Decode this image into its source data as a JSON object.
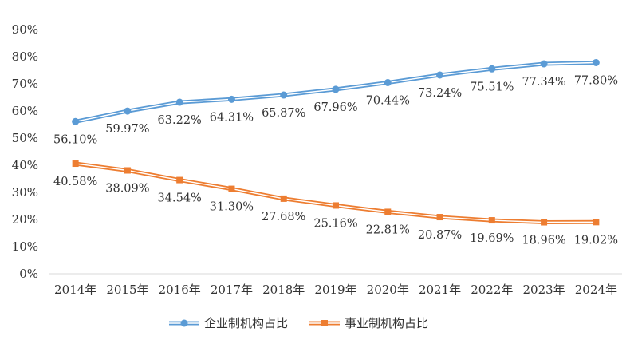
{
  "chart_data": {
    "type": "line",
    "categories": [
      "2014年",
      "2015年",
      "2016年",
      "2017年",
      "2018年",
      "2019年",
      "2020年",
      "2021年",
      "2022年",
      "2023年",
      "2024年"
    ],
    "ylim": [
      0,
      90
    ],
    "yticks": [
      "0%",
      "10%",
      "20%",
      "30%",
      "40%",
      "50%",
      "60%",
      "70%",
      "80%",
      "90%"
    ],
    "grid": false,
    "legend_position": "bottom",
    "series": [
      {
        "name": "企业制机构占比",
        "values": [
          56.1,
          59.97,
          63.22,
          64.31,
          65.87,
          67.96,
          70.44,
          73.24,
          75.51,
          77.34,
          77.8
        ],
        "labels": [
          "56.10%",
          "59.97%",
          "63.22%",
          "64.31%",
          "65.87%",
          "67.96%",
          "70.44%",
          "73.24%",
          "75.51%",
          "77.34%",
          "77.80%"
        ],
        "color": "#5B9BD5",
        "marker": "circle"
      },
      {
        "name": "事业制机构占比",
        "values": [
          40.58,
          38.09,
          34.54,
          31.3,
          27.68,
          25.16,
          22.81,
          20.87,
          19.69,
          18.96,
          19.02
        ],
        "labels": [
          "40.58%",
          "38.09%",
          "34.54%",
          "31.30%",
          "27.68%",
          "25.16%",
          "22.81%",
          "20.87%",
          "19.69%",
          "18.96%",
          "19.02%"
        ],
        "color": "#ED7D31",
        "marker": "square"
      }
    ]
  }
}
